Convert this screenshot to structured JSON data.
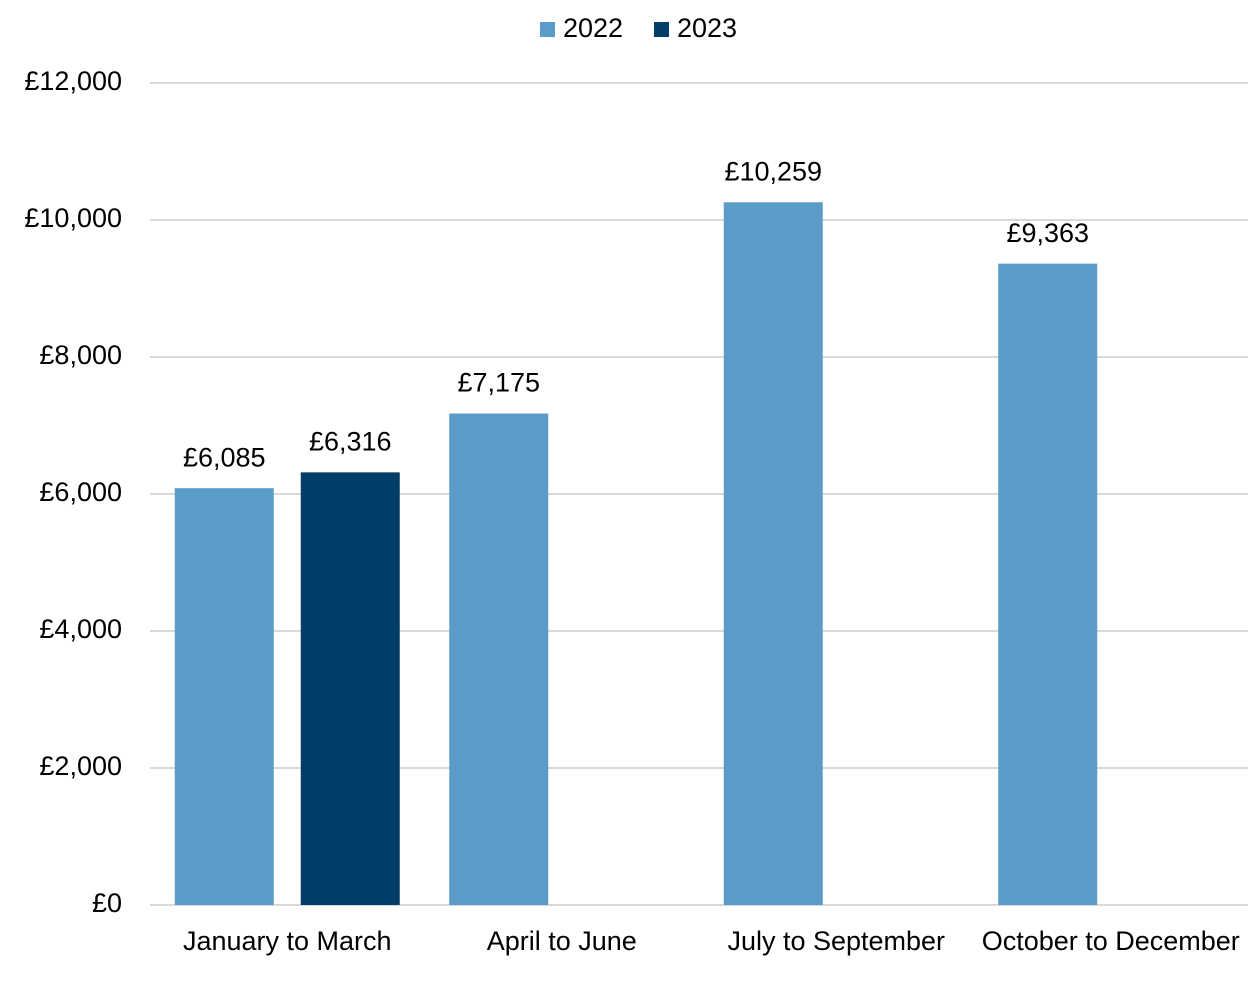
{
  "chart_data": {
    "type": "bar",
    "categories": [
      "January to March",
      "April to June",
      "July to September",
      "October to December"
    ],
    "series": [
      {
        "name": "2022",
        "color": "#5b9bc8",
        "values": [
          6085,
          7175,
          10259,
          9363
        ],
        "value_labels": [
          "£6,085",
          "£7,175",
          "£10,259",
          "£9,363"
        ]
      },
      {
        "name": "2023",
        "color": "#023d67",
        "values": [
          6316,
          null,
          null,
          null
        ],
        "value_labels": [
          "£6,316",
          null,
          null,
          null
        ]
      }
    ],
    "ylim": [
      0,
      12000
    ],
    "yticks": [
      {
        "value": 0,
        "label": "£0"
      },
      {
        "value": 2000,
        "label": "£2,000"
      },
      {
        "value": 4000,
        "label": "£4,000"
      },
      {
        "value": 6000,
        "label": "£6,000"
      },
      {
        "value": 8000,
        "label": "£8,000"
      },
      {
        "value": 10000,
        "label": "£10,000"
      },
      {
        "value": 12000,
        "label": "£12,000"
      }
    ],
    "grid": true,
    "legend": "top"
  }
}
